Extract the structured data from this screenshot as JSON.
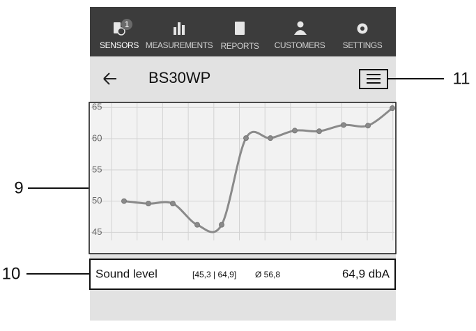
{
  "nav": {
    "tabs": [
      "SENSORS",
      "MEASUREMENTS",
      "REPORTS",
      "CUSTOMERS",
      "SETTINGS"
    ],
    "badge": "1"
  },
  "header": {
    "title": "BS30WP"
  },
  "chart_data": {
    "type": "line",
    "categories": [
      null,
      null,
      null,
      null,
      null,
      null,
      null,
      null,
      null,
      null,
      null,
      null
    ],
    "series": [
      {
        "color": "#8a8a8a",
        "values": [
          50.0,
          49.6,
          49.6,
          46.2,
          46.2,
          60.1,
          60.1,
          61.3,
          61.2,
          62.2,
          62.1,
          64.9
        ]
      }
    ],
    "ylim": [
      43.7,
      65.7
    ],
    "yticks": [
      45,
      50,
      55,
      60,
      65
    ],
    "grid": true
  },
  "summary": {
    "label": "Sound level",
    "range": "[45,3 | 64,9]",
    "average": "Ø 56,8",
    "current": "64,9 dbA"
  },
  "callouts": [
    "9",
    "10",
    "11"
  ]
}
